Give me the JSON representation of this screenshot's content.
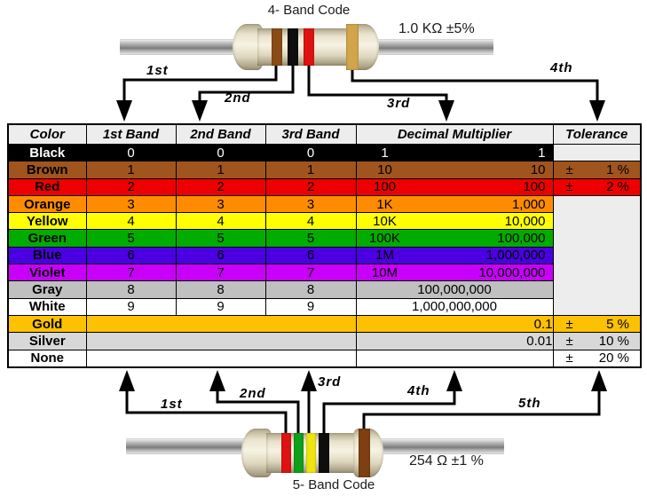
{
  "page": {
    "background": "#FFFFFF"
  },
  "top_resistor": {
    "title": "4- Band Code",
    "value_label": "1.0 KΩ  ±5%",
    "arrow_labels": [
      "1st",
      "2nd",
      "3rd",
      "4th"
    ],
    "bands": [
      {
        "name": "brown",
        "color": "#8A4B17"
      },
      {
        "name": "black",
        "color": "#0E0E0E"
      },
      {
        "name": "red",
        "color": "#DE1212"
      },
      {
        "name": "gold",
        "color": "#D2A44C"
      }
    ],
    "body_color": "#EDE7D2",
    "wire_color": "#8F8F8F"
  },
  "bottom_resistor": {
    "title": "5- Band Code",
    "value_label": "254 Ω  ±1 %",
    "arrow_labels": [
      "1st",
      "2nd",
      "3rd",
      "4th",
      "5th"
    ],
    "bands": [
      {
        "name": "red",
        "color": "#DE1212"
      },
      {
        "name": "green",
        "color": "#0FA019"
      },
      {
        "name": "yellow",
        "color": "#F0E410"
      },
      {
        "name": "black",
        "color": "#0E0E0E"
      },
      {
        "name": "brown",
        "color": "#7C4012"
      }
    ],
    "body_color": "#EDE7D2",
    "wire_color": "#8F8F8F"
  },
  "table": {
    "headers": [
      "Color",
      "1st Band",
      "2nd Band",
      "3rd Band",
      "Decimal Multiplier",
      "Tolerance"
    ],
    "header_bg": "#EDEDED",
    "empty_cell_bg": "#EDEDED",
    "border_color": "#000000",
    "merged_tolerance_span": 7,
    "rows": [
      {
        "name": "Black",
        "bg": "#000000",
        "fg": "#FFFFFF",
        "d1": "0",
        "d2": "0",
        "d3": "0",
        "mult_left": "1",
        "mult_right": "1",
        "tol": "empty"
      },
      {
        "name": "Brown",
        "bg": "#A0551E",
        "fg": "#000000",
        "d1": "1",
        "d2": "1",
        "d3": "1",
        "mult_left": "10",
        "mult_right": "10",
        "tol_sign": "±",
        "tol_value": "1 %"
      },
      {
        "name": "Red",
        "bg": "#EE0000",
        "fg": "#000000",
        "d1": "2",
        "d2": "2",
        "d3": "2",
        "mult_left": "100",
        "mult_right": "100",
        "tol_sign": "±",
        "tol_value": "2 %"
      },
      {
        "name": "Orange",
        "bg": "#FF8C00",
        "fg": "#000000",
        "d1": "3",
        "d2": "3",
        "d3": "3",
        "mult_left": "1K",
        "mult_right": "1,000",
        "tol": "merged"
      },
      {
        "name": "Yellow",
        "bg": "#FFFF00",
        "fg": "#000000",
        "d1": "4",
        "d2": "4",
        "d3": "4",
        "mult_left": "10K",
        "mult_right": "10,000"
      },
      {
        "name": "Green",
        "bg": "#00AC00",
        "fg": "#000000",
        "d1": "5",
        "d2": "5",
        "d3": "5",
        "mult_left": "100K",
        "mult_right": "100,000"
      },
      {
        "name": "Blue",
        "bg": "#4A00E0",
        "fg": "#000000",
        "d1": "6",
        "d2": "6",
        "d3": "6",
        "mult_left": "1M",
        "mult_right": "1,000,000"
      },
      {
        "name": "Violet",
        "bg": "#C800FA",
        "fg": "#000000",
        "d1": "7",
        "d2": "7",
        "d3": "7",
        "mult_left": "10M",
        "mult_right": "10,000,000"
      },
      {
        "name": "Gray",
        "bg": "#C0C0C0",
        "fg": "#000000",
        "d1": "8",
        "d2": "8",
        "d3": "8",
        "mult_center": "100,000,000"
      },
      {
        "name": "White",
        "bg": "#FFFFFF",
        "fg": "#000000",
        "d1": "9",
        "d2": "9",
        "d3": "9",
        "mult_center": "1,000,000,000"
      },
      {
        "name": "Gold",
        "bg": "#FDC101",
        "fg": "#000000",
        "digits_merged": true,
        "mult_right_only": "0.1",
        "tol_sign": "±",
        "tol_value": "5 %"
      },
      {
        "name": "Silver",
        "bg": "#D8D8D8",
        "fg": "#000000",
        "digits_merged": true,
        "mult_right_only": "0.01",
        "tol_sign": "±",
        "tol_value": "10 %"
      },
      {
        "name": "None",
        "bg": "#FFFFFF",
        "fg": "#000000",
        "digits_merged": true,
        "tol_sign": "±",
        "tol_value": "20 %"
      }
    ]
  }
}
